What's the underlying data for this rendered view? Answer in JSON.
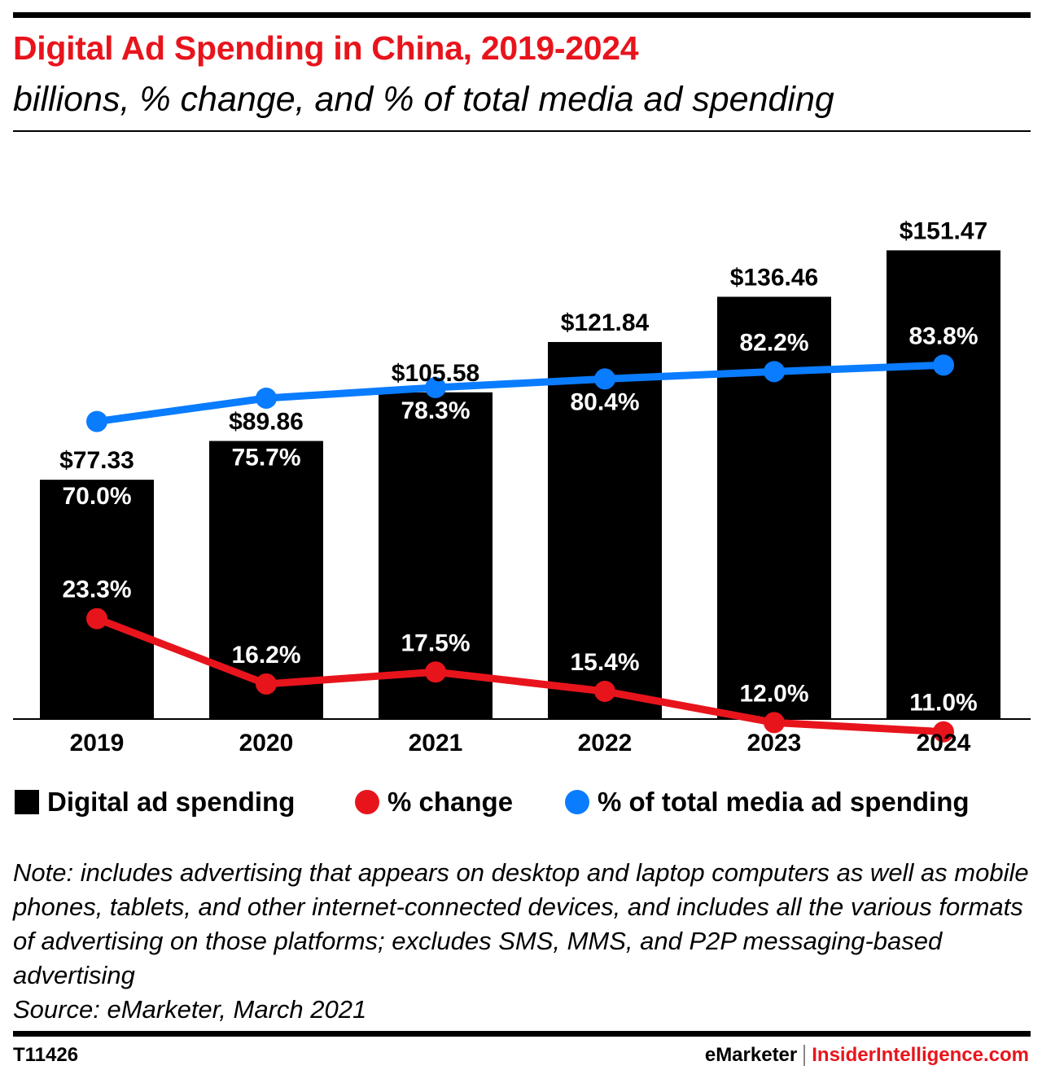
{
  "header": {
    "title": "Digital Ad Spending in China, 2019-2024",
    "subtitle": "billions, % change, and % of total media ad spending"
  },
  "colors": {
    "title": "#e8141c",
    "bars": "#000000",
    "pct_change": "#e8141c",
    "pct_total": "#0a7cff"
  },
  "chart_data": {
    "type": "bar",
    "title": "Digital Ad Spending in China, 2019-2024",
    "subtitle": "billions, % change, and % of total media ad spending",
    "categories": [
      "2019",
      "2020",
      "2021",
      "2022",
      "2023",
      "2024"
    ],
    "series": [
      {
        "name": "Digital ad spending",
        "type": "bar",
        "values": [
          77.33,
          89.86,
          105.58,
          121.84,
          136.46,
          151.47
        ],
        "labels": [
          "$77.33",
          "$89.86",
          "$105.58",
          "$121.84",
          "$136.46",
          "$151.47"
        ]
      },
      {
        "name": "% change",
        "type": "line",
        "values": [
          23.3,
          16.2,
          17.5,
          15.4,
          12.0,
          11.0
        ],
        "labels": [
          "23.3%",
          "16.2%",
          "17.5%",
          "15.4%",
          "12.0%",
          "11.0%"
        ]
      },
      {
        "name": "% of total media ad spending",
        "type": "line",
        "values": [
          70.0,
          75.7,
          78.3,
          80.4,
          82.2,
          83.8
        ],
        "labels": [
          "70.0%",
          "75.7%",
          "78.3%",
          "80.4%",
          "82.2%",
          "83.8%"
        ]
      }
    ],
    "xlabel": "",
    "ylabel": "",
    "grid": false,
    "legend_position": "bottom"
  },
  "legend": [
    {
      "label": "Digital ad spending"
    },
    {
      "label": "% change"
    },
    {
      "label": "% of total media ad spending"
    }
  ],
  "note": "Note: includes advertising that appears on desktop and laptop computers as well as mobile phones, tablets, and other internet-connected devices, and includes all the various formats of advertising on those platforms; excludes SMS, MMS, and P2P messaging-based advertising",
  "source": "Source: eMarketer, March 2021",
  "footer": {
    "chart_id": "T11426",
    "brand": "eMarketer",
    "site": "InsiderIntelligence.com"
  }
}
